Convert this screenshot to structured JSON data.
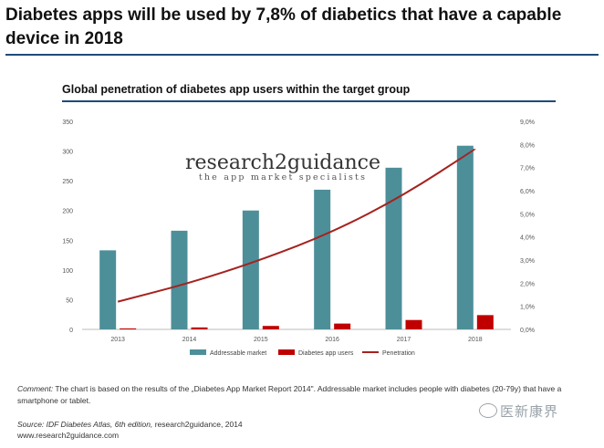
{
  "headline": "Diabetes apps will be used by 7,8% of diabetics that have a capable device in 2018",
  "chart_data": {
    "type": "bar",
    "title": "Global penetration of diabetes app users within the target group",
    "categories": [
      "2013",
      "2014",
      "2015",
      "2016",
      "2017",
      "2018"
    ],
    "series": [
      {
        "name": "Addressable market",
        "type": "bar",
        "axis": "left",
        "color": "#4d8f99",
        "values": [
          133,
          166,
          200,
          235,
          272,
          309
        ]
      },
      {
        "name": "Diabetes app users",
        "type": "bar",
        "axis": "left",
        "color": "#c00000",
        "values": [
          1.6,
          3.3,
          5.8,
          9.8,
          15.8,
          24
        ]
      },
      {
        "name": "Penetration",
        "type": "line",
        "axis": "right",
        "color": "#a5221f",
        "values": [
          1.2,
          2.0,
          3.0,
          4.2,
          5.8,
          7.8
        ]
      }
    ],
    "y_left": {
      "ylim": [
        0,
        350
      ],
      "ticks": [
        "0",
        "50",
        "100",
        "150",
        "200",
        "250",
        "300",
        "350"
      ]
    },
    "y_right": {
      "ylim": [
        0,
        9
      ],
      "ticks": [
        "0,0%",
        "1,0%",
        "2,0%",
        "3,0%",
        "4,0%",
        "5,0%",
        "6,0%",
        "7,0%",
        "8,0%",
        "9,0%"
      ]
    },
    "grid": false,
    "legend_position": "bottom",
    "logo": {
      "name": "research2guidance",
      "tagline": "the app market specialists"
    }
  },
  "comment_label": "Comment:",
  "comment_text": " The chart is based on the results of the „Diabetes App Market Report 2014\". Addressable market includes people with diabetes (20-79y) that have a smartphone or tablet.",
  "source_label": "Source: IDF Diabetes Atlas, 6th edition,",
  "source_text": " research2guidance, 2014",
  "source_url": "www.research2guidance.com",
  "watermark": "医新康界",
  "watermark_icon": "wechat-icon"
}
